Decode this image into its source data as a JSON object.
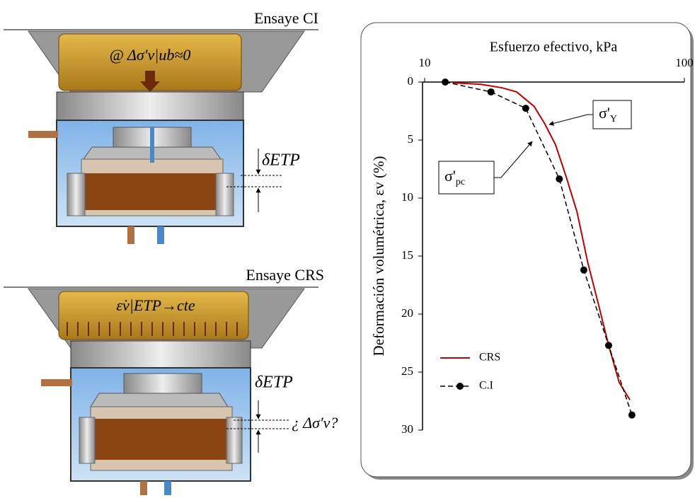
{
  "chart_data": {
    "type": "line",
    "title": "Esfuerzo efectivo, kPa",
    "y_label": "Deformación volumétrica,  εv (%)",
    "log_x": true,
    "x_axis_top": true,
    "y_inverted": true,
    "xlim": [
      10,
      100
    ],
    "xticks": [
      10,
      100
    ],
    "ylim": [
      0,
      30
    ],
    "yticks": [
      0,
      5,
      10,
      15,
      20,
      25,
      30
    ],
    "legend": "lower left",
    "series": [
      {
        "name": "CRS",
        "color": "#c00000",
        "style": "solid",
        "marker": false,
        "x": [
          12.8,
          16.5,
          19.9,
          22.6,
          26.4,
          29.0,
          31.9,
          35.1,
          38.6,
          42.4,
          46.6,
          51.1,
          56.1,
          61.7
        ],
        "values": [
          0.06,
          0.2,
          0.5,
          0.85,
          2.1,
          3.6,
          5.4,
          8.2,
          11.2,
          15.5,
          19.1,
          22.7,
          25.9,
          27.4
        ]
      },
      {
        "name": "C.I",
        "color": "#000000",
        "style": "dashed",
        "marker": true,
        "x": [
          12.0,
          18.0,
          24.5,
          33.0,
          41.0,
          51.1,
          62.8
        ],
        "values": [
          0,
          0.85,
          2.26,
          8.35,
          16.2,
          22.7,
          28.7
        ]
      }
    ],
    "annotations": [
      {
        "symbol": "σ'",
        "sub": "Y"
      },
      {
        "symbol": "σ'",
        "sub": "pc"
      }
    ]
  },
  "diagram": {
    "top_title": "Ensaye CI",
    "top_load": "@ Δσ′v|ub≈0",
    "top_delta": "δETP",
    "bottom_title": "Ensaye CRS",
    "bottom_load": "ε̇v|ETP→cte",
    "bottom_delta": "δETP",
    "bottom_question": "¿ Δσ′v?"
  }
}
